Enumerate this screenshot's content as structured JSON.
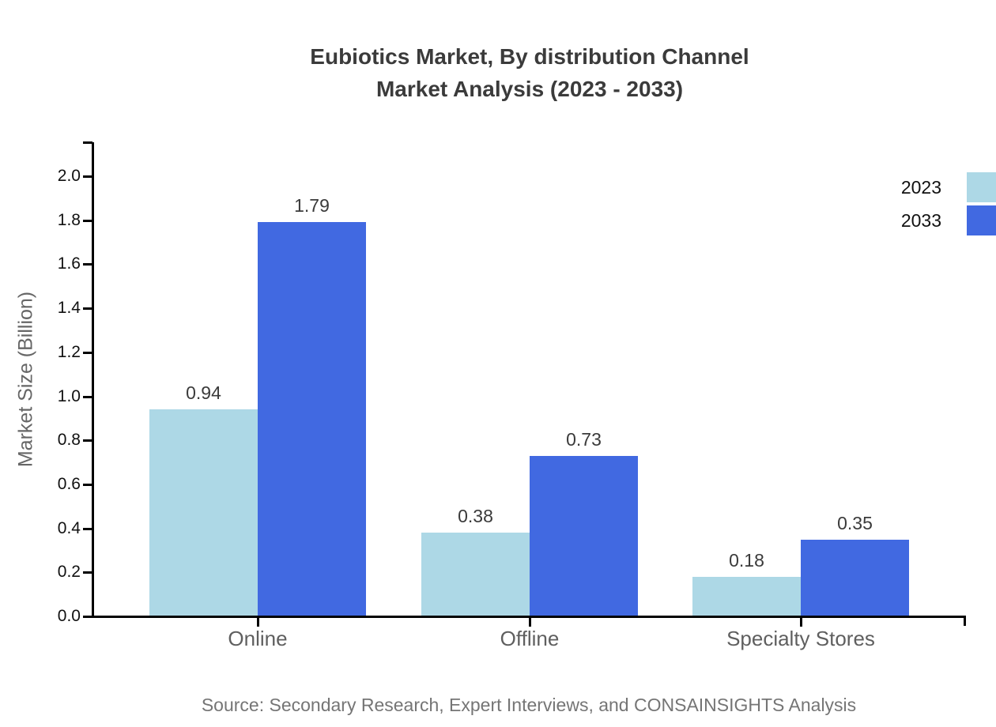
{
  "figure": {
    "title_line1": "Eubiotics Market, By distribution Channel",
    "title_line2": "Market Analysis (2023 - 2033)",
    "source_text": "Source: Secondary Research, Expert Interviews, and CONSAINSIGHTS Analysis"
  },
  "colors": {
    "series_2023": "#ADD8E6",
    "series_2033": "#4169E1",
    "axis": "#000000",
    "title_text": "#3b3b3b",
    "tick_text": "#111111",
    "category_text": "#5f5f5f",
    "value_text": "#3a3a3a",
    "source_text": "#757575",
    "ylabel_text": "#666666"
  },
  "chart_data": {
    "type": "bar",
    "title": "Eubiotics Market, By distribution Channel Market Analysis (2023 - 2033)",
    "categories": [
      "Online",
      "Offline",
      "Specialty Stores"
    ],
    "series": [
      {
        "name": "2023",
        "color": "#ADD8E6",
        "values": [
          0.94,
          0.38,
          0.18
        ]
      },
      {
        "name": "2033",
        "color": "#4169E1",
        "values": [
          1.79,
          0.73,
          0.35
        ]
      }
    ],
    "xlabel": "",
    "ylabel": "Market Size (Billion)",
    "ylim": [
      0,
      2.0
    ],
    "ytick_step": 0.2,
    "ytick_labels": [
      "0.0",
      "0.2",
      "0.4",
      "0.6",
      "0.8",
      "1.0",
      "1.2",
      "1.4",
      "1.6",
      "1.8",
      "2.0"
    ],
    "value_labels": [
      [
        "0.94",
        "1.79"
      ],
      [
        "0.38",
        "0.73"
      ],
      [
        "0.18",
        "0.35"
      ]
    ],
    "grid": false,
    "legend_position": "top-right",
    "legend": [
      "2023",
      "2033"
    ]
  }
}
